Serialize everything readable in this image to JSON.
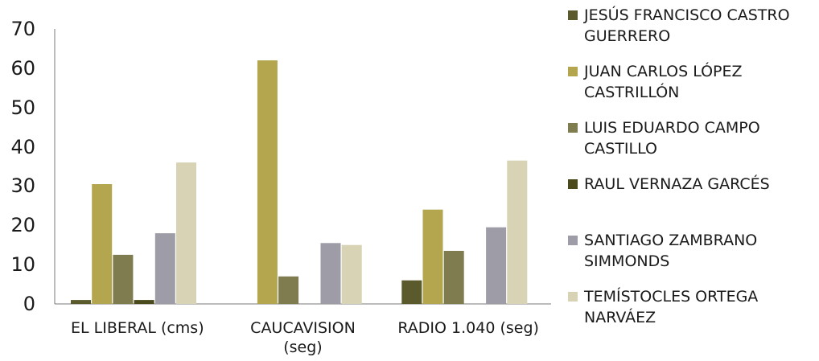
{
  "chart_data": {
    "type": "bar",
    "categories": [
      "EL LIBERAL (cms)",
      "CAUCAVISION (seg)",
      "RADIO 1.040 (seg)"
    ],
    "series": [
      {
        "name": "JESÚS FRANCISCO CASTRO GUERRERO",
        "color": "#5b5a2c",
        "values": [
          1,
          0,
          6
        ]
      },
      {
        "name": "JUAN CARLOS LÓPEZ CASTRILLÓN",
        "color": "#b3a64e",
        "values": [
          30.5,
          62,
          24
        ]
      },
      {
        "name": "LUIS EDUARDO CAMPO CASTILLO",
        "color": "#7f7c50",
        "values": [
          12.5,
          7,
          13.5
        ]
      },
      {
        "name": "RAUL VERNAZA GARCÉS",
        "color": "#4a4a1c",
        "values": [
          1,
          0,
          0
        ]
      },
      {
        "name": "SANTIAGO ZAMBRANO SIMMONDS",
        "color": "#9e9ca6",
        "values": [
          18,
          15.5,
          19.5
        ]
      },
      {
        "name": "TEMÍSTOCLES ORTEGA NARVÁEZ",
        "color": "#d7d3b4",
        "values": [
          36,
          15,
          36.5
        ]
      }
    ],
    "yticks": [
      "0",
      "10",
      "20",
      "30",
      "40",
      "50",
      "60",
      "70"
    ],
    "ylim": [
      0,
      70
    ],
    "grid": false,
    "legend_position": "right"
  }
}
